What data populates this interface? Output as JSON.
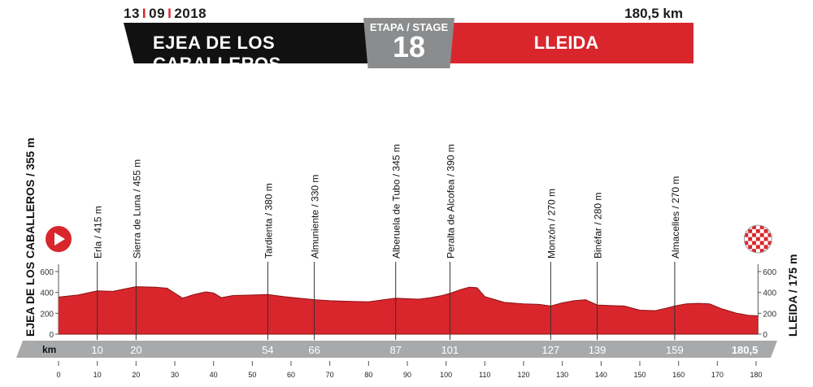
{
  "header": {
    "date_day": "13",
    "date_month": "09",
    "date_year": "2018",
    "total_distance": "180,5 km",
    "start": "EJEA DE LOS CABALLEROS",
    "finish": "LLEIDA",
    "stage_label": "ETAPA / STAGE",
    "stage_number": "18"
  },
  "side_labels": {
    "start": "EJEA DE LOS CABALLEROS / 355 m",
    "finish": "LLEIDA / 175 m"
  },
  "colors": {
    "profile": "#d9262c",
    "banner_dark": "#111111",
    "stage_box": "#8a8c8e",
    "km_bar": "#a7a9ab"
  },
  "chart_data": {
    "type": "area",
    "title": "",
    "xlabel": "km",
    "ylabel": "",
    "xlim": [
      0,
      180.5
    ],
    "ylim": [
      0,
      600
    ],
    "x_ticks": [
      0,
      10,
      20,
      30,
      40,
      50,
      60,
      70,
      80,
      90,
      100,
      110,
      120,
      130,
      140,
      150,
      160,
      170,
      180
    ],
    "y_ticks": [
      0,
      200,
      400,
      600
    ],
    "profile": {
      "x": [
        0,
        5,
        10,
        14,
        18,
        20,
        25,
        28,
        32,
        35,
        38,
        40,
        42,
        45,
        50,
        54,
        58,
        62,
        66,
        70,
        75,
        80,
        84,
        87,
        90,
        93,
        96,
        99,
        101,
        104,
        106,
        108,
        110,
        115,
        120,
        124,
        127,
        130,
        133,
        136,
        139,
        142,
        146,
        150,
        154,
        157,
        159,
        162,
        165,
        168,
        171,
        175,
        178,
        180.5
      ],
      "y": [
        355,
        375,
        415,
        410,
        440,
        455,
        450,
        440,
        345,
        380,
        405,
        395,
        350,
        370,
        375,
        380,
        360,
        345,
        330,
        320,
        315,
        310,
        330,
        345,
        340,
        335,
        350,
        370,
        390,
        430,
        450,
        445,
        360,
        305,
        290,
        285,
        270,
        300,
        320,
        330,
        280,
        275,
        270,
        230,
        225,
        250,
        270,
        290,
        295,
        290,
        245,
        200,
        180,
        175
      ]
    },
    "waypoints": [
      {
        "km": 10,
        "label": "Erla / 415 m"
      },
      {
        "km": 20,
        "label": "Sierra de Luna / 455 m"
      },
      {
        "km": 54,
        "label": "Tardienta / 380 m"
      },
      {
        "km": 66,
        "label": "Almuniente / 330 m"
      },
      {
        "km": 87,
        "label": "Alberuela de Tubo / 345 m"
      },
      {
        "km": 101,
        "label": "Peralta de Alcofea / 390 m"
      },
      {
        "km": 127,
        "label": "Monzón / 270 m"
      },
      {
        "km": 139,
        "label": "Binéfar / 280 m"
      },
      {
        "km": 159,
        "label": "Almacelles / 270 m"
      }
    ],
    "km_bar_labels": [
      "10",
      "20",
      "54",
      "66",
      "87",
      "101",
      "127",
      "139",
      "159",
      "180,5"
    ],
    "km_bar_positions": [
      10,
      20,
      54,
      66,
      87,
      101,
      127,
      139,
      159,
      180.5
    ],
    "km_bar_title": "km"
  }
}
